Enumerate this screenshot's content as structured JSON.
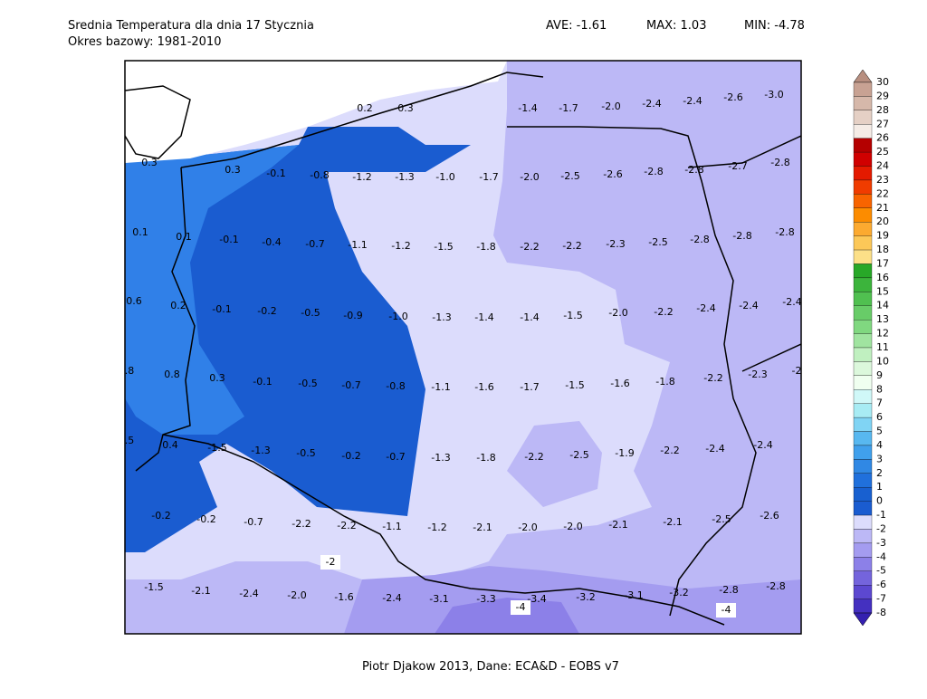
{
  "header": {
    "title": "Srednia Temperatura dla dnia 17 Stycznia",
    "subtitle": "Okres bazowy: 1981-2010",
    "ave": "AVE: -1.61",
    "max": "MAX: 1.03",
    "min": "MIN: -4.78"
  },
  "footer": "Piotr Djakow 2013, Dane: ECA&D - EOBS v7",
  "map_labels": [
    "0.2",
    "0.3",
    "-1.4",
    "-1.7",
    "-2.0",
    "-2.4",
    "-2.4",
    "-2.6",
    "-3.0",
    "0.3",
    "0.3",
    "-0.1",
    "-0.8",
    "-1.2",
    "-1.3",
    "-1.0",
    "-1.7",
    "-2.0",
    "-2.5",
    "-2.6",
    "-2.8",
    "-2.8",
    "-2.7",
    "-2.8",
    "0.1",
    "0.1",
    "-0.1",
    "-0.4",
    "-0.7",
    "-1.1",
    "-1.2",
    "-1.5",
    "-1.8",
    "-2.2",
    "-2.2",
    "-2.3",
    "-2.5",
    "-2.8",
    "-2.8",
    "-2.8",
    "0.6",
    "0.2",
    "-0.1",
    "-0.2",
    "-0.5",
    "-0.9",
    "-1.0",
    "-1.3",
    "-1.4",
    "-1.4",
    "-1.5",
    "-2.0",
    "-2.2",
    "-2.4",
    "-2.4",
    "-2.4",
    ".8",
    "0.8",
    "0.3",
    "-0.1",
    "-0.5",
    "-0.7",
    "-0.8",
    "-1.1",
    "-1.6",
    "-1.7",
    "-1.5",
    "-1.6",
    "-1.8",
    "-2.2",
    "-2.3",
    "-2",
    ".5",
    "0.4",
    "-1.5",
    "-1.3",
    "-0.5",
    "-0.2",
    "-0.7",
    "-1.3",
    "-1.8",
    "-2.2",
    "-2.5",
    "-1.9",
    "-2.2",
    "-2.4",
    "-2.4",
    "-0.2",
    "-0.2",
    "-0.7",
    "-2.2",
    "-2.2",
    "-1.1",
    "-1.2",
    "-2.1",
    "-2.0",
    "-2.0",
    "-2.1",
    "-2.1",
    "-2.5",
    "-2.6",
    "-1.5",
    "-2.1",
    "-2.4",
    "-2.0",
    "-1.6",
    "-2.4",
    "-3.1",
    "-3.3",
    "-3.4",
    "-3.2",
    "-3.1",
    "-3.2",
    "-2.8",
    "-2.8"
  ],
  "contour_labels": [
    "-2",
    "-4",
    "-4"
  ],
  "colorbar": {
    "labels": [
      "30",
      "29",
      "28",
      "27",
      "26",
      "25",
      "24",
      "23",
      "22",
      "21",
      "20",
      "19",
      "18",
      "17",
      "16",
      "15",
      "14",
      "13",
      "12",
      "11",
      "10",
      "9",
      "8",
      "7",
      "6",
      "5",
      "4",
      "3",
      "2",
      "1",
      "0",
      "-1",
      "-2",
      "-3",
      "-4",
      "-5",
      "-6",
      "-7",
      "-8"
    ],
    "colors": [
      "#b88f80",
      "#c8a293",
      "#d6b8aa",
      "#e5d0c5",
      "#f5ece6",
      "#b40000",
      "#d00000",
      "#e41a00",
      "#f03c00",
      "#f86400",
      "#fc8c00",
      "#fcaa30",
      "#fcc858",
      "#fce088",
      "#28a828",
      "#3cb43c",
      "#50c050",
      "#68cc68",
      "#80d880",
      "#a0e4a0",
      "#c0f0c0",
      "#dcf8dc",
      "#f0fff0",
      "#d0f8f8",
      "#a8ecf4",
      "#80d4f4",
      "#58b8f0",
      "#40a0ec",
      "#3088e4",
      "#2070dc",
      "#1860d0",
      "#1a5cd0",
      "#dcdcfc",
      "#bcb8f6",
      "#a49cf0",
      "#8c80e8",
      "#7464dc",
      "#5c48d0",
      "#4430c0",
      "#3420b0"
    ]
  }
}
